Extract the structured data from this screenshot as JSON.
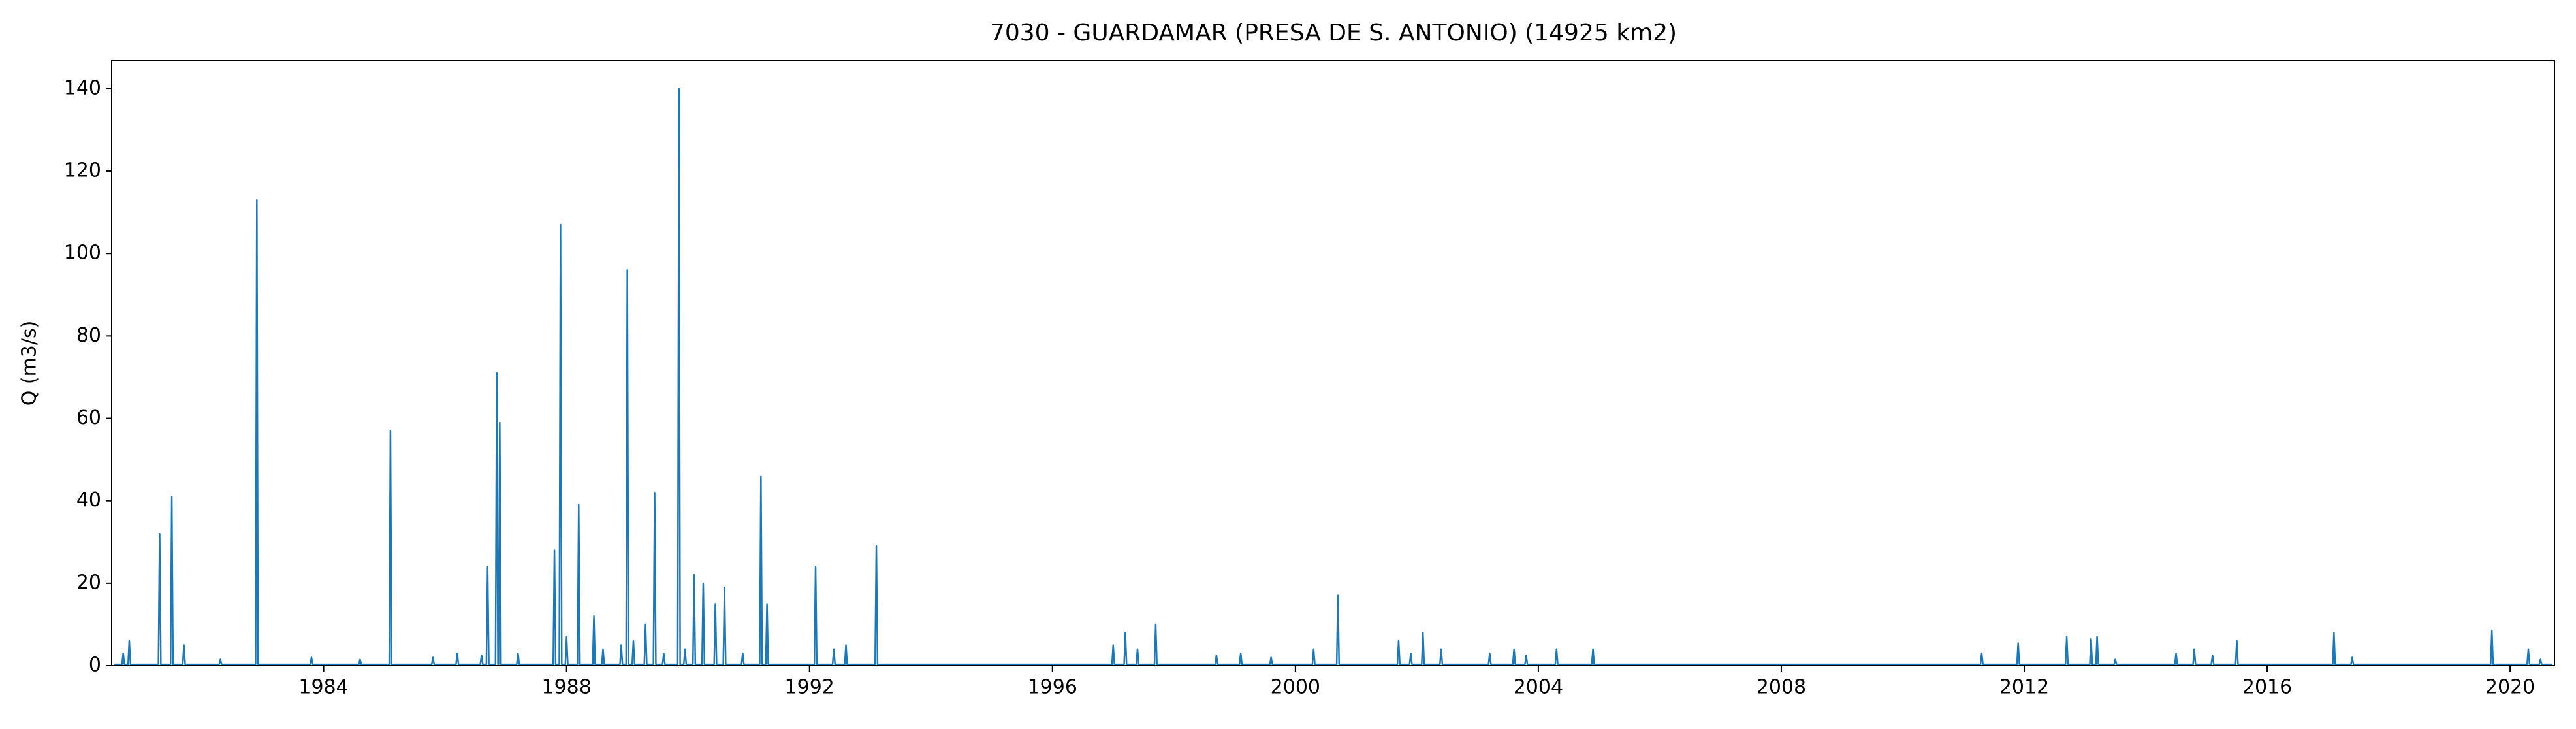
{
  "chart_data": {
    "type": "line",
    "title": "7030 - GUARDAMAR (PRESA DE S. ANTONIO) (14925 km2)",
    "ylabel": "Q (m3/s)",
    "color": "#1f77b4",
    "xlim": [
      1980.51,
      2020.73
    ],
    "ylim": [
      0,
      146.8
    ],
    "xticks": [
      1984,
      1988,
      1992,
      1996,
      2000,
      2004,
      2008,
      2012,
      2016,
      2020
    ],
    "yticks": [
      0,
      20,
      40,
      60,
      80,
      100,
      120,
      140
    ],
    "x": [
      1980.55,
      1980.68,
      1980.7,
      1980.72,
      1980.78,
      1980.8,
      1980.82,
      1981.28,
      1981.3,
      1981.32,
      1981.48,
      1981.5,
      1981.52,
      1981.68,
      1981.7,
      1981.72,
      1982.28,
      1982.3,
      1982.32,
      1982.88,
      1982.9,
      1982.92,
      1983.78,
      1983.8,
      1983.82,
      1984.58,
      1984.6,
      1984.62,
      1985.08,
      1985.1,
      1985.12,
      1985.78,
      1985.8,
      1985.82,
      1986.18,
      1986.2,
      1986.22,
      1986.58,
      1986.6,
      1986.62,
      1986.68,
      1986.7,
      1986.72,
      1986.83,
      1986.85,
      1986.87,
      1986.88,
      1986.9,
      1986.92,
      1987.18,
      1987.2,
      1987.22,
      1987.78,
      1987.8,
      1987.82,
      1987.88,
      1987.9,
      1987.92,
      1987.98,
      1988.0,
      1988.02,
      1988.18,
      1988.2,
      1988.22,
      1988.43,
      1988.45,
      1988.47,
      1988.58,
      1988.6,
      1988.62,
      1988.88,
      1988.9,
      1988.92,
      1988.98,
      1989.0,
      1989.02,
      1989.08,
      1989.1,
      1989.12,
      1989.28,
      1989.3,
      1989.32,
      1989.43,
      1989.45,
      1989.47,
      1989.58,
      1989.6,
      1989.62,
      1989.83,
      1989.85,
      1989.87,
      1989.93,
      1989.95,
      1989.97,
      1990.08,
      1990.1,
      1990.12,
      1990.23,
      1990.25,
      1990.27,
      1990.43,
      1990.45,
      1990.47,
      1990.58,
      1990.6,
      1990.62,
      1990.88,
      1990.9,
      1990.92,
      1991.18,
      1991.2,
      1991.22,
      1991.28,
      1991.3,
      1991.32,
      1992.08,
      1992.1,
      1992.12,
      1992.38,
      1992.4,
      1992.42,
      1992.58,
      1992.6,
      1992.62,
      1993.08,
      1993.1,
      1993.12,
      1996.98,
      1997.0,
      1997.02,
      1997.18,
      1997.2,
      1997.22,
      1997.38,
      1997.4,
      1997.42,
      1997.68,
      1997.7,
      1997.72,
      1998.68,
      1998.7,
      1998.72,
      1999.08,
      1999.1,
      1999.12,
      1999.58,
      1999.6,
      1999.62,
      2000.28,
      2000.3,
      2000.32,
      2000.68,
      2000.7,
      2000.72,
      2001.68,
      2001.7,
      2001.72,
      2001.88,
      2001.9,
      2001.92,
      2002.08,
      2002.1,
      2002.12,
      2002.38,
      2002.4,
      2002.42,
      2003.18,
      2003.2,
      2003.22,
      2003.58,
      2003.6,
      2003.62,
      2003.78,
      2003.8,
      2003.82,
      2004.28,
      2004.3,
      2004.32,
      2004.88,
      2004.9,
      2004.92,
      2011.28,
      2011.3,
      2011.32,
      2011.88,
      2011.9,
      2011.92,
      2012.68,
      2012.7,
      2012.72,
      2013.08,
      2013.1,
      2013.12,
      2013.18,
      2013.2,
      2013.22,
      2013.48,
      2013.5,
      2013.52,
      2014.48,
      2014.5,
      2014.52,
      2014.78,
      2014.8,
      2014.82,
      2015.08,
      2015.1,
      2015.12,
      2015.48,
      2015.5,
      2015.52,
      2017.08,
      2017.1,
      2017.12,
      2017.38,
      2017.4,
      2017.42,
      2019.68,
      2019.7,
      2019.72,
      2020.28,
      2020.3,
      2020.32,
      2020.48,
      2020.5,
      2020.52,
      2020.7
    ],
    "values": [
      0.3,
      0.3,
      3,
      0.3,
      0.3,
      6,
      0.3,
      0.3,
      32,
      0.3,
      0.3,
      41,
      0.3,
      0.3,
      5,
      0.3,
      0.3,
      1.5,
      0.3,
      0.3,
      113,
      0.3,
      0.3,
      2,
      0.3,
      0.3,
      1.5,
      0.3,
      0.3,
      57,
      0.3,
      0.3,
      2,
      0.3,
      0.3,
      3,
      0.3,
      0.3,
      2.5,
      0.3,
      0.3,
      24,
      0.3,
      0.3,
      71,
      0.3,
      0.3,
      59,
      0.3,
      0.3,
      3,
      0.3,
      0.3,
      28,
      0.3,
      0.3,
      107,
      0.3,
      0.3,
      7,
      0.3,
      0.3,
      39,
      0.3,
      0.3,
      12,
      0.3,
      0.3,
      4,
      0.3,
      0.3,
      5,
      0.3,
      0.3,
      96,
      0.3,
      0.3,
      6,
      0.3,
      0.3,
      10,
      0.3,
      0.3,
      42,
      0.3,
      0.3,
      3,
      0.3,
      0.3,
      140,
      0.3,
      0.3,
      4,
      0.3,
      0.3,
      22,
      0.3,
      0.3,
      20,
      0.3,
      0.3,
      15,
      0.3,
      0.3,
      19,
      0.3,
      0.3,
      3,
      0.3,
      0.3,
      46,
      0.3,
      0.3,
      15,
      0.3,
      0.3,
      24,
      0.3,
      0.3,
      4,
      0.3,
      0.3,
      5,
      0.3,
      0.3,
      29,
      0.3,
      0.3,
      5,
      0.3,
      0.3,
      8,
      0.3,
      0.3,
      4,
      0.3,
      0.3,
      10,
      0.3,
      0.3,
      2.5,
      0.3,
      0.3,
      3,
      0.3,
      0.3,
      2,
      0.3,
      0.3,
      4,
      0.3,
      0.3,
      17,
      0.3,
      0.3,
      6,
      0.3,
      0.3,
      3,
      0.3,
      0.3,
      8,
      0.3,
      0.3,
      4,
      0.3,
      0.3,
      3,
      0.3,
      0.3,
      4,
      0.3,
      0.3,
      2.5,
      0.3,
      0.3,
      4,
      0.3,
      0.3,
      4,
      0.3,
      0.3,
      3,
      0.3,
      0.3,
      5.5,
      0.3,
      0.3,
      7,
      0.3,
      0.3,
      6.5,
      0.3,
      0.3,
      7,
      0.3,
      0.3,
      1.5,
      0.3,
      0.3,
      3,
      0.3,
      0.3,
      4,
      0.3,
      0.3,
      2.5,
      0.3,
      0.3,
      6,
      0.3,
      0.3,
      8,
      0.3,
      0.3,
      2,
      0.3,
      0.3,
      8.5,
      0.3,
      0.3,
      4,
      0.3,
      0.3,
      1.5,
      0.3,
      0.3
    ]
  }
}
